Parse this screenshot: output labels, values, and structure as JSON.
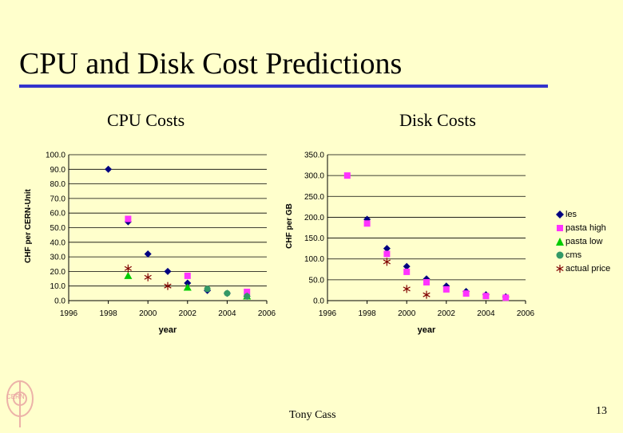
{
  "slide": {
    "title": "CPU and Disk Cost Predictions",
    "author": "Tony Cass",
    "page_number": "13",
    "logo_text": "CERN"
  },
  "legend": {
    "items": [
      {
        "name": "les",
        "marker": "diamond",
        "color": "#000080"
      },
      {
        "name": "pasta high",
        "marker": "square",
        "color": "#ff33ff"
      },
      {
        "name": "pasta low",
        "marker": "triangle",
        "color": "#00cc00"
      },
      {
        "name": "cms",
        "marker": "circle",
        "color": "#339966"
      },
      {
        "name": "actual price",
        "marker": "asterisk",
        "color": "#800000"
      }
    ]
  },
  "chart_data": [
    {
      "type": "scatter",
      "title": "CPU Costs",
      "xlabel": "year",
      "ylabel": "CHF per CERN-Unit",
      "xlim": [
        1996,
        2006
      ],
      "ylim": [
        0,
        100
      ],
      "x_ticks": [
        "1996",
        "1998",
        "2000",
        "2002",
        "2004",
        "2006"
      ],
      "y_ticks": [
        "0.0",
        "10.0",
        "20.0",
        "30.0",
        "40.0",
        "50.0",
        "60.0",
        "70.0",
        "80.0",
        "90.0",
        "100.0"
      ],
      "series": [
        {
          "name": "les",
          "points": [
            [
              1998,
              90
            ],
            [
              1999,
              54
            ],
            [
              2000,
              32
            ],
            [
              2001,
              20
            ],
            [
              2002,
              12
            ],
            [
              2003,
              7
            ],
            [
              2004,
              5
            ],
            [
              2005,
              3
            ]
          ]
        },
        {
          "name": "pasta high",
          "points": [
            [
              1999,
              56
            ],
            [
              2002,
              17
            ],
            [
              2005,
              6
            ]
          ]
        },
        {
          "name": "pasta low",
          "points": [
            [
              1999,
              17
            ],
            [
              2002,
              9
            ],
            [
              2005,
              3
            ]
          ]
        },
        {
          "name": "cms",
          "points": [
            [
              2003,
              8
            ],
            [
              2004,
              5
            ],
            [
              2005,
              3
            ]
          ]
        },
        {
          "name": "actual price",
          "points": [
            [
              1999,
              22
            ],
            [
              2000,
              16
            ],
            [
              2001,
              10
            ]
          ]
        }
      ]
    },
    {
      "type": "scatter",
      "title": "Disk Costs",
      "xlabel": "year",
      "ylabel": "CHF per GB",
      "xlim": [
        1996,
        2006
      ],
      "ylim": [
        0,
        350
      ],
      "x_ticks": [
        "1996",
        "1998",
        "2000",
        "2002",
        "2004",
        "2006"
      ],
      "y_ticks": [
        "0.0",
        "50.0",
        "100.0",
        "150.0",
        "200.0",
        "250.0",
        "300.0",
        "350.0"
      ],
      "series": [
        {
          "name": "les",
          "points": [
            [
              1998,
              195
            ],
            [
              1999,
              125
            ],
            [
              2000,
              82
            ],
            [
              2001,
              52
            ],
            [
              2002,
              35
            ],
            [
              2003,
              22
            ],
            [
              2004,
              14
            ],
            [
              2005,
              9
            ]
          ]
        },
        {
          "name": "pasta high",
          "points": [
            [
              1997,
              300
            ],
            [
              1998,
              185
            ],
            [
              1999,
              112
            ],
            [
              2000,
              69
            ],
            [
              2001,
              44
            ],
            [
              2002,
              27
            ],
            [
              2003,
              17
            ],
            [
              2004,
              11
            ],
            [
              2005,
              7
            ]
          ]
        },
        {
          "name": "pasta low",
          "points": []
        },
        {
          "name": "cms",
          "points": []
        },
        {
          "name": "actual price",
          "points": [
            [
              1999,
              93
            ],
            [
              2000,
              28
            ],
            [
              2001,
              14
            ]
          ]
        }
      ]
    }
  ]
}
